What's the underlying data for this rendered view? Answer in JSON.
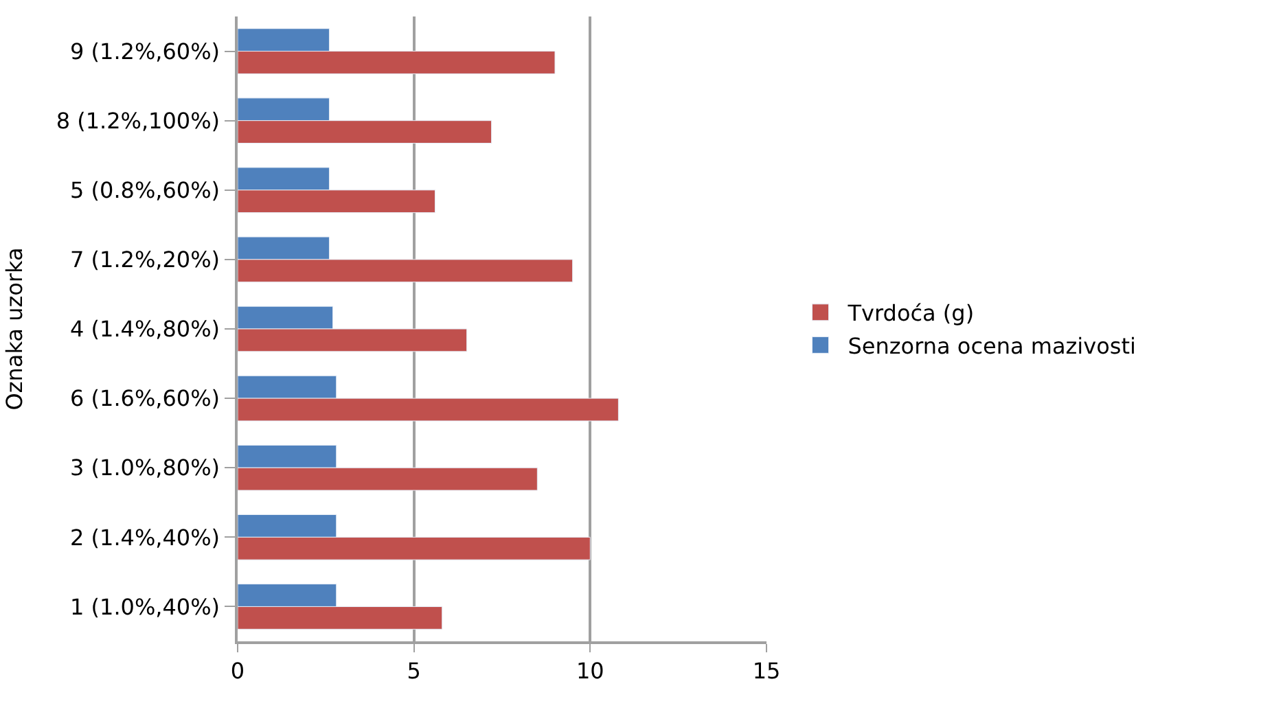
{
  "chart_data": {
    "type": "bar",
    "orientation": "horizontal",
    "ylabel": "Oznaka uzorka",
    "categories": [
      "9 (1.2%,60%)",
      "8 (1.2%,100%)",
      "5 (0.8%,60%)",
      "7 (1.2%,20%)",
      "4 (1.4%,80%)",
      "6 (1.6%,60%)",
      "3 (1.0%,80%)",
      "2 (1.4%,40%)",
      "1 (1.0%,40%)"
    ],
    "series": [
      {
        "name": "Senzorna ocena mazivosti",
        "color": "#4f81bd",
        "values": [
          2.6,
          2.6,
          2.6,
          2.6,
          2.7,
          2.8,
          2.8,
          2.8,
          2.8
        ]
      },
      {
        "name": "Tvrdoća (g)",
        "color": "#c0504d",
        "values": [
          9.0,
          7.2,
          5.6,
          9.5,
          6.5,
          10.8,
          8.5,
          10.0,
          5.8
        ]
      }
    ],
    "xlim": [
      0,
      15
    ],
    "xticks": [
      0,
      5,
      10,
      15
    ],
    "grid": "x",
    "legend": "right"
  }
}
